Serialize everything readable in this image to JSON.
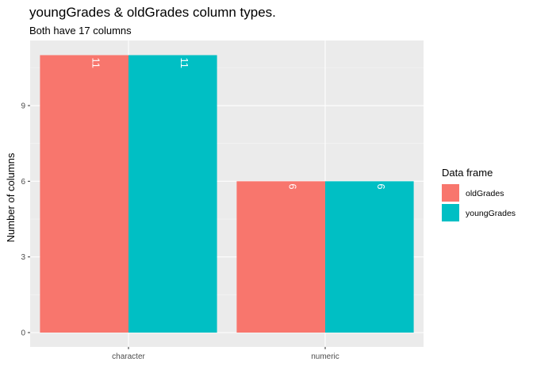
{
  "chart_data": {
    "type": "bar",
    "title": "youngGrades & oldGrades column types.",
    "subtitle": "Both have 17 columns",
    "xlabel": "",
    "ylabel": "Number of columns",
    "categories": [
      "character",
      "numeric"
    ],
    "series": [
      {
        "name": "oldGrades",
        "values": [
          11,
          6
        ],
        "color": "#F8766D"
      },
      {
        "name": "youngGrades",
        "values": [
          11,
          6
        ],
        "color": "#00BFC4"
      }
    ],
    "data_labels": [
      [
        "11",
        "11"
      ],
      [
        "6",
        "6"
      ]
    ],
    "ylim": [
      0,
      11.55
    ],
    "yticks": [
      0,
      3,
      6,
      9
    ],
    "ytick_labels": [
      "0",
      "3",
      "6",
      "9"
    ],
    "grid": true,
    "legend": {
      "title": "Data frame",
      "placement": "right"
    },
    "panel_background": "#EBEBEB"
  }
}
